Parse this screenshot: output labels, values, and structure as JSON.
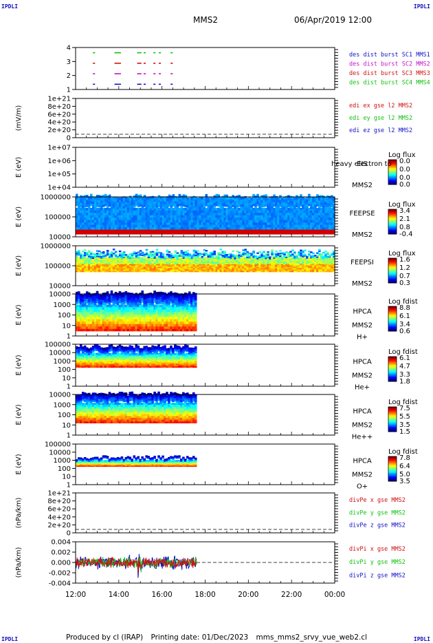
{
  "corner_label": "IPDLI",
  "header": {
    "spacecraft": "MMS2",
    "datetime": "06/Apr/2019 12:00"
  },
  "footer": {
    "producer": "Produced by cl (IRAP)",
    "printing_date": "Printing date: 01/Dec/2023",
    "file": "mms_mms2_srvy_vue_web2.cl"
  },
  "time_axis": {
    "ticks": [
      "12:00",
      "14:00",
      "16:00",
      "18:00",
      "20:00",
      "22:00",
      "00:00"
    ],
    "range_hours": [
      12,
      24
    ],
    "data_end_hours": 17.6
  },
  "colors": {
    "sc1": "#1010c8",
    "sc2": "#c810c8",
    "sc3": "#d01010",
    "sc4": "#10c010"
  },
  "chart_data": [
    {
      "id": "burst",
      "type": "scatter",
      "ylim": [
        0.5,
        4.5
      ],
      "ytick_labels": [
        "1",
        "2",
        "3",
        "4"
      ],
      "legend": [
        {
          "text": "des dist burst SC1 MMS1",
          "color": "#1010c8"
        },
        {
          "text": "des dist burst SC2 MMS2",
          "color": "#c810c8"
        },
        {
          "text": "des dist burst SC3 MMS3",
          "color": "#d01010"
        },
        {
          "text": "des dist burst SC4 MMS4",
          "color": "#10c010"
        }
      ],
      "bursts": [
        [
          12.8,
          12.9
        ],
        [
          13.8,
          14.1
        ],
        [
          14.85,
          15.05
        ],
        [
          15.15,
          15.25
        ],
        [
          15.6,
          15.7
        ],
        [
          15.85,
          15.95
        ],
        [
          16.4,
          16.5
        ]
      ],
      "burst_levels": [
        1,
        2,
        3,
        4
      ],
      "burst_colors": [
        "#1010c8",
        "#c810c8",
        "#d01010",
        "#10c010"
      ]
    },
    {
      "id": "edi",
      "type": "line",
      "ylabel": "(mV/m)",
      "ytick_labels": [
        "0",
        "2e+20",
        "4e+20",
        "6e+20",
        "8e+20",
        "1e+21"
      ],
      "ylim": [
        -1e+20,
        1.1e+21
      ],
      "legend": [
        {
          "text": "edi ex gse l2 MMS2",
          "color": "#d01010"
        },
        {
          "text": "edi ey gse l2 MMS2",
          "color": "#10c010"
        },
        {
          "text": "edi ez gse l2 MMS2",
          "color": "#1010c8"
        }
      ]
    },
    {
      "id": "eis",
      "type": "heatmap",
      "ylabel": "E (eV)",
      "scale": "log",
      "ytick_labels": [
        "1e+04",
        "1e+05",
        "1e+06",
        "1e+07"
      ],
      "instrument": [
        "EIS",
        "MMS2"
      ],
      "overlay": "heavy electron to",
      "cb_title": "Log flux",
      "cb_labels": [
        "0.0",
        "0.0",
        "0.0",
        "0.0"
      ],
      "time_range": [
        12,
        12
      ],
      "band": [
        0,
        0
      ]
    },
    {
      "id": "feeps_e",
      "type": "heatmap",
      "ylabel": "E (eV)",
      "scale": "log",
      "ytick_labels": [
        "10000",
        "100000",
        "1000000"
      ],
      "instrument": [
        "FEEPSE",
        "MMS2"
      ],
      "cb_title": "Log flux",
      "cb_labels": [
        "3.4",
        "2.1",
        "0.8",
        "-0.4"
      ],
      "time_range": [
        12,
        24
      ],
      "band": [
        0.07,
        0.97
      ]
    },
    {
      "id": "feeps_i",
      "type": "heatmap",
      "ylabel": "E (eV)",
      "scale": "log",
      "ytick_labels": [
        "10000",
        "100000",
        "1000000"
      ],
      "instrument": [
        "FEEPSI",
        "MMS2"
      ],
      "cb_title": "Log flux",
      "cb_labels": [
        "1.6",
        "1.2",
        "0.7",
        "0.3"
      ],
      "time_range": [
        12,
        24
      ],
      "band": [
        0.35,
        0.85
      ]
    },
    {
      "id": "hpca_h",
      "type": "heatmap",
      "ylabel": "E (eV)",
      "scale": "log",
      "ytick_labels": [
        "1",
        "10",
        "100",
        "1000",
        "10000"
      ],
      "instrument": [
        "HPCA",
        "MMS2"
      ],
      "species": "H+",
      "cb_title": "Log fdist",
      "cb_labels": [
        "8.8",
        "6.1",
        "3.4",
        "0.6"
      ],
      "time_range": [
        12,
        17.6
      ],
      "band": [
        0.12,
        0.98
      ]
    },
    {
      "id": "hpca_he",
      "type": "heatmap",
      "ylabel": "E (eV)",
      "scale": "log",
      "ytick_labels": [
        "1",
        "10",
        "100",
        "1000",
        "10000",
        "100000"
      ],
      "instrument": [
        "HPCA",
        "MMS2"
      ],
      "species": "He+",
      "cb_title": "Log fdist",
      "cb_labels": [
        "6.1",
        "4.7",
        "3.3",
        "1.8"
      ],
      "time_range": [
        12,
        17.6
      ],
      "band": [
        0.45,
        0.92
      ]
    },
    {
      "id": "hpca_hepp",
      "type": "heatmap",
      "ylabel": "E (eV)",
      "scale": "log",
      "ytick_labels": [
        "1",
        "10",
        "100",
        "1000",
        "10000"
      ],
      "instrument": [
        "HPCA",
        "MMS2"
      ],
      "species": "He++",
      "cb_title": "Log fdist",
      "cb_labels": [
        "7.5",
        "5.5",
        "3.5",
        "1.5"
      ],
      "time_range": [
        12,
        17.6
      ],
      "band": [
        0.3,
        0.98
      ]
    },
    {
      "id": "hpca_o",
      "type": "heatmap",
      "ylabel": "E (eV)",
      "scale": "log",
      "ytick_labels": [
        "1",
        "10",
        "100",
        "1000",
        "10000",
        "100000"
      ],
      "instrument": [
        "HPCA",
        "MMS2"
      ],
      "species": "O+",
      "cb_title": "Log fdist",
      "cb_labels": [
        "7.8",
        "6.4",
        "5.0",
        "3.5"
      ],
      "time_range": [
        12,
        17.6
      ],
      "band": [
        0.45,
        0.66
      ]
    },
    {
      "id": "divpe",
      "type": "line",
      "ylabel": "(nPa/km)",
      "ytick_labels": [
        "0",
        "2e+20",
        "4e+20",
        "6e+20",
        "8e+20",
        "1e+21"
      ],
      "ylim": [
        -1e+20,
        1.1e+21
      ],
      "legend": [
        {
          "text": "divPe x gse MMS2",
          "color": "#d01010"
        },
        {
          "text": "divPe y gse MMS2",
          "color": "#10c010"
        },
        {
          "text": "divPe z gse MMS2",
          "color": "#1010c8"
        }
      ]
    },
    {
      "id": "divpi",
      "type": "line",
      "ylabel": "(nPa/km)",
      "ytick_labels": [
        "-0.004",
        "-0.002",
        "0.000",
        "0.002",
        "0.004"
      ],
      "ylim": [
        -0.0055,
        0.0055
      ],
      "time_range": [
        12,
        17.6
      ],
      "legend": [
        {
          "text": "divPi x gse MMS2",
          "color": "#d01010"
        },
        {
          "text": "divPi y gse MMS2",
          "color": "#10c010"
        },
        {
          "text": "divPi z gse MMS2",
          "color": "#1010c8"
        }
      ]
    }
  ]
}
